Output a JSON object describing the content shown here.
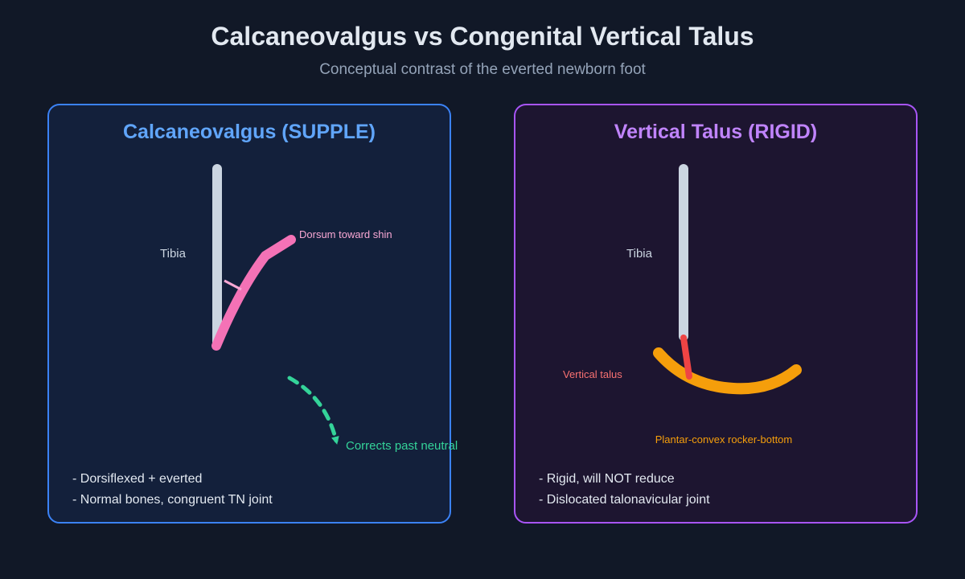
{
  "header": {
    "title": "Calcaneovalgus vs Congenital Vertical Talus",
    "subtitle": "Conceptual contrast of the everted newborn foot"
  },
  "left_panel": {
    "title": "Calcaneovalgus (SUPPLE)",
    "tibia_label": "Tibia",
    "dorsum_label": "Dorsum toward shin",
    "correction_label": "Corrects past neutral",
    "notes": [
      "- Dorsiflexed + everted",
      "- Normal bones, congruent TN joint"
    ],
    "colors": {
      "border": "#3b82f6",
      "title": "#60a5fa",
      "foot": "#f472b6",
      "arrow": "#34d399",
      "tibia": "#cbd5e1"
    }
  },
  "right_panel": {
    "title": "Vertical Talus (RIGID)",
    "tibia_label": "Tibia",
    "talus_label": "Vertical talus",
    "rocker_label": "Plantar-convex rocker-bottom",
    "notes": [
      "- Rigid, will NOT reduce",
      "- Dislocated talonavicular joint"
    ],
    "colors": {
      "border": "#a855f7",
      "title": "#c084fc",
      "talus": "#ef4444",
      "rocker": "#f59e0b",
      "tibia": "#cbd5e1"
    }
  }
}
